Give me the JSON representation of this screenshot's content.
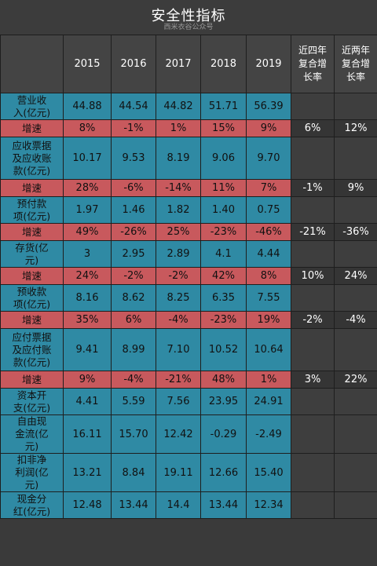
{
  "title": "安全性指标",
  "subtitle": "西米衣谷公众号",
  "years": [
    "2015",
    "2016",
    "2017",
    "2018",
    "2019"
  ],
  "cagr_headers": [
    "近四年复合增长率",
    "近两年复合增长率"
  ],
  "rows": [
    {
      "label": "营业收入(亿元)",
      "values": [
        "44.88",
        "44.54",
        "44.82",
        "51.71",
        "56.39"
      ]
    },
    {
      "label": "增速",
      "values": [
        "8%",
        "-1%",
        "1%",
        "15%",
        "9%"
      ],
      "cagr4": "6%",
      "cagr2": "12%"
    },
    {
      "label": "应收票据及应收账款(亿元)",
      "values": [
        "10.17",
        "9.53",
        "8.19",
        "9.06",
        "9.70"
      ]
    },
    {
      "label": "增速",
      "values": [
        "28%",
        "-6%",
        "-14%",
        "11%",
        "7%"
      ],
      "cagr4": "-1%",
      "cagr2": "9%"
    },
    {
      "label": "预付款项(亿元)",
      "values": [
        "1.97",
        "1.46",
        "1.82",
        "1.40",
        "0.75"
      ]
    },
    {
      "label": "增速",
      "values": [
        "49%",
        "-26%",
        "25%",
        "-23%",
        "-46%"
      ],
      "cagr4": "-21%",
      "cagr2": "-36%"
    },
    {
      "label": "存货(亿元)",
      "values": [
        "3",
        "2.95",
        "2.89",
        "4.1",
        "4.44"
      ]
    },
    {
      "label": "增速",
      "values": [
        "24%",
        "-2%",
        "-2%",
        "42%",
        "8%"
      ],
      "cagr4": "10%",
      "cagr2": "24%"
    },
    {
      "label": "预收款项(亿元)",
      "values": [
        "8.16",
        "8.62",
        "8.25",
        "6.35",
        "7.55"
      ]
    },
    {
      "label": "增速",
      "values": [
        "35%",
        "6%",
        "-4%",
        "-23%",
        "19%"
      ],
      "cagr4": "-2%",
      "cagr2": "-4%"
    },
    {
      "label": "应付票据及应付账款(亿元)",
      "values": [
        "9.41",
        "8.99",
        "7.10",
        "10.52",
        "10.64"
      ]
    },
    {
      "label": "增速",
      "values": [
        "9%",
        "-4%",
        "-21%",
        "48%",
        "1%"
      ],
      "cagr4": "3%",
      "cagr2": "22%"
    },
    {
      "label": "资本开支(亿元)",
      "values": [
        "4.41",
        "5.59",
        "7.56",
        "23.95",
        "24.91"
      ]
    },
    {
      "label": "自由现金流(亿元)",
      "values": [
        "16.11",
        "15.70",
        "12.42",
        "-0.29",
        "-2.49"
      ]
    },
    {
      "label": "扣非净利润(亿元)",
      "values": [
        "13.21",
        "8.84",
        "19.11",
        "12.66",
        "15.40"
      ]
    },
    {
      "label": "现金分红(亿元)",
      "values": [
        "12.48",
        "13.44",
        "14.4",
        "13.44",
        "12.34"
      ]
    }
  ]
}
